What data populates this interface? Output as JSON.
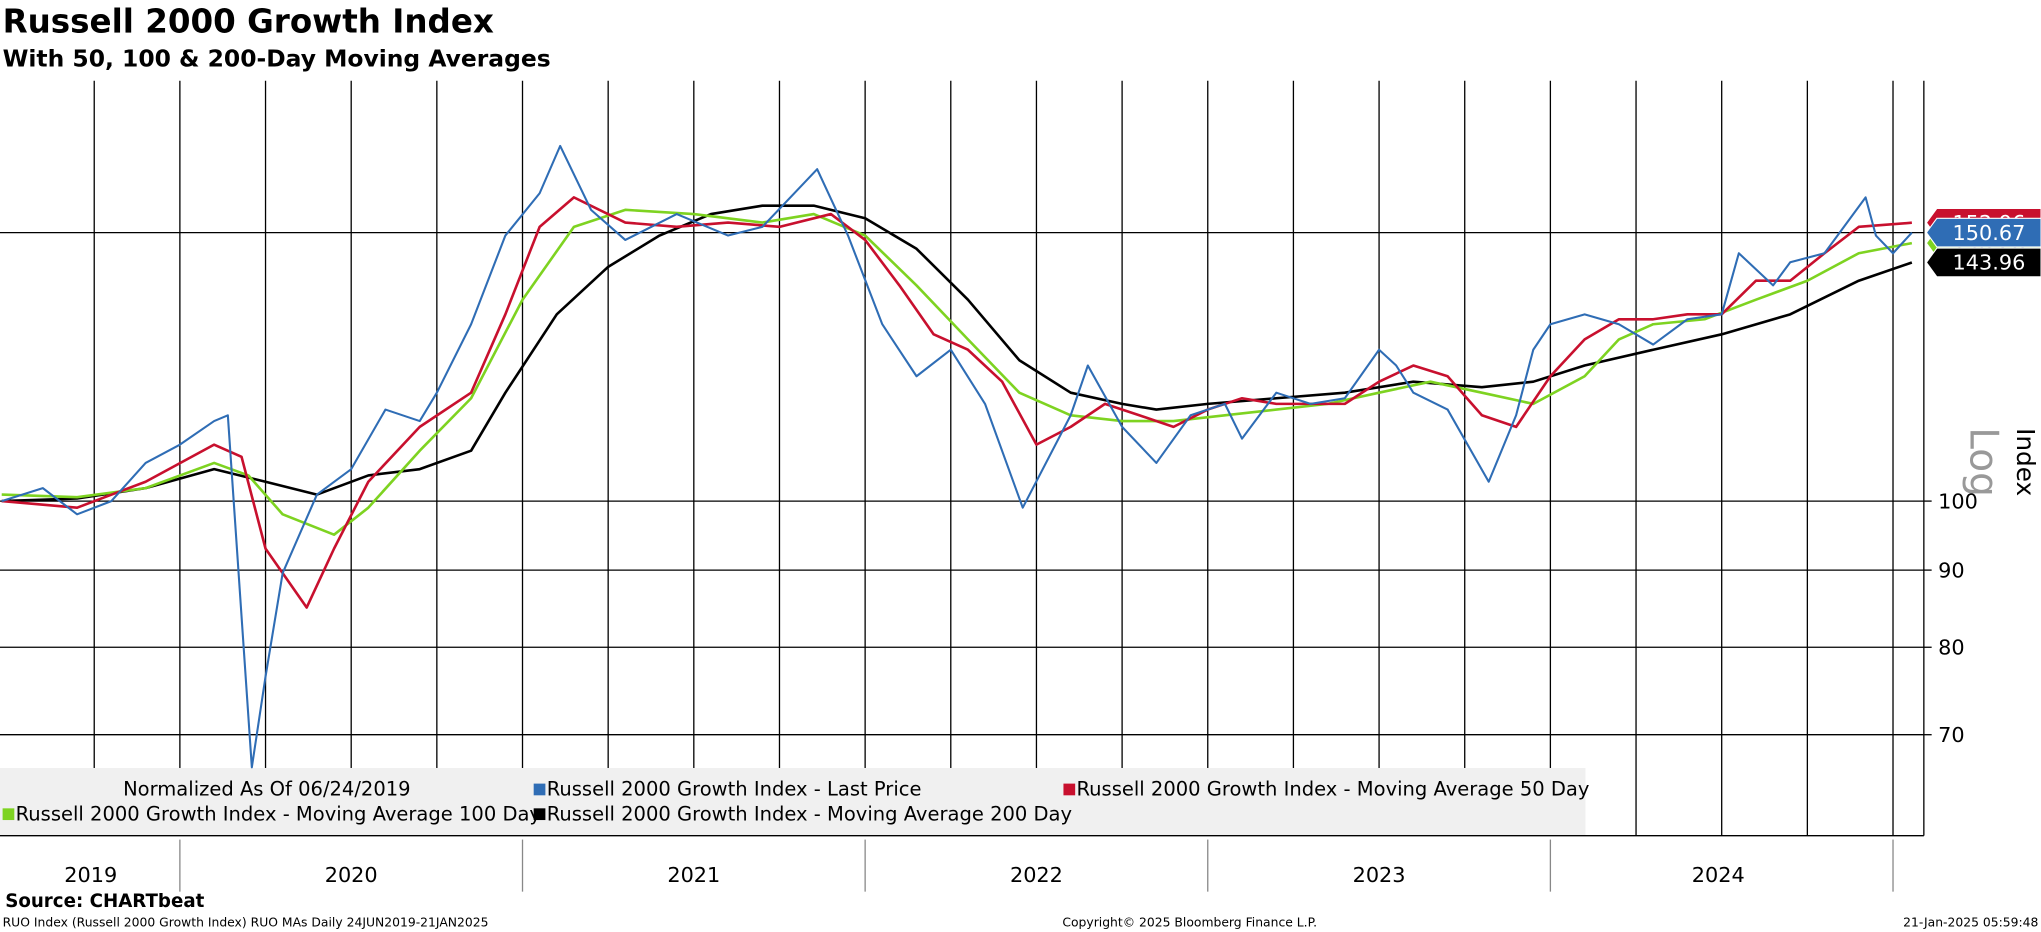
{
  "chart_data": {
    "type": "line",
    "title": "Russell 2000 Growth Index",
    "subtitle": "With 50, 100 & 200-Day Moving Averages",
    "y_label": "Index",
    "y_scale_label": "Log",
    "log_scale": true,
    "grid": true,
    "annotation": "Normalized As Of 06/24/2019",
    "source": "Source: CHARTbeat",
    "footer_left": "RUO Index (Russell 2000 Growth Index) RUO MAs  Daily 24JUN2019-21JAN2025",
    "footer_center": "Copyright© 2025 Bloomberg Finance L.P.",
    "footer_right": "21-Jan-2025 05:59:48",
    "xlim": [
      2019.475,
      2025.09
    ],
    "xticks": [
      {
        "value": 2019.74,
        "label": "2019"
      },
      {
        "value": 2020.5,
        "label": "2020"
      },
      {
        "value": 2021.5,
        "label": "2021"
      },
      {
        "value": 2022.5,
        "label": "2022"
      },
      {
        "value": 2023.5,
        "label": "2023"
      },
      {
        "value": 2024.49,
        "label": "2024"
      }
    ],
    "xgrid": [
      2019.75,
      2020,
      2020.25,
      2020.5,
      2020.75,
      2021,
      2021.25,
      2021.5,
      2021.75,
      2022,
      2022.25,
      2022.5,
      2022.75,
      2023,
      2023.25,
      2023.5,
      2023.75,
      2024,
      2024.25,
      2024.5,
      2024.75,
      2025
    ],
    "ylim": [
      60,
      190
    ],
    "yticks": [
      70,
      80,
      90,
      100
    ],
    "series": [
      {
        "name": "Russell 2000 Growth Index - Last Price",
        "color": "#2f6db5",
        "x": [
          2019.48,
          2019.6,
          2019.7,
          2019.8,
          2019.9,
          2020.0,
          2020.1,
          2020.14,
          2020.21,
          2020.25,
          2020.3,
          2020.4,
          2020.5,
          2020.6,
          2020.7,
          2020.75,
          2020.85,
          2020.95,
          2021.05,
          2021.11,
          2021.2,
          2021.3,
          2021.45,
          2021.6,
          2021.7,
          2021.86,
          2021.95,
          2022.05,
          2022.15,
          2022.25,
          2022.35,
          2022.46,
          2022.6,
          2022.65,
          2022.75,
          2022.85,
          2022.95,
          2023.05,
          2023.1,
          2023.2,
          2023.3,
          2023.4,
          2023.5,
          2023.55,
          2023.6,
          2023.7,
          2023.82,
          2023.9,
          2023.95,
          2024.0,
          2024.1,
          2024.2,
          2024.3,
          2024.4,
          2024.5,
          2024.55,
          2024.65,
          2024.7,
          2024.8,
          2024.92,
          2024.95,
          2025.0,
          2025.055
        ],
        "values": [
          100,
          102,
          98,
          100,
          106,
          109,
          113,
          114,
          66.6,
          76.5,
          89.6,
          101,
          105,
          115,
          113,
          118,
          131,
          150,
          160,
          172,
          156,
          149,
          155,
          150,
          152,
          166,
          150,
          131,
          121,
          126,
          116,
          99,
          114,
          123,
          112,
          106,
          114,
          116,
          110,
          118,
          116,
          117,
          126,
          123,
          118,
          115,
          103,
          114,
          126,
          131,
          133,
          131,
          127,
          132,
          133,
          146,
          139,
          144,
          146,
          159,
          150,
          146,
          150.67
        ]
      },
      {
        "name": "Russell 2000 Growth Index - Moving Average 50 Day",
        "color": "#c8102e",
        "x": [
          2019.48,
          2019.7,
          2019.9,
          2020.1,
          2020.18,
          2020.25,
          2020.37,
          2020.45,
          2020.55,
          2020.7,
          2020.85,
          2020.95,
          2021.05,
          2021.15,
          2021.3,
          2021.45,
          2021.6,
          2021.75,
          2021.9,
          2022.0,
          2022.1,
          2022.2,
          2022.3,
          2022.4,
          2022.5,
          2022.6,
          2022.7,
          2022.8,
          2022.9,
          2023.0,
          2023.1,
          2023.2,
          2023.3,
          2023.4,
          2023.5,
          2023.6,
          2023.7,
          2023.8,
          2023.9,
          2024.0,
          2024.1,
          2024.2,
          2024.3,
          2024.4,
          2024.5,
          2024.6,
          2024.7,
          2024.8,
          2024.9,
          2025.055
        ],
        "values": [
          100,
          99,
          103,
          109,
          107,
          93,
          85,
          93,
          103,
          112,
          118,
          133,
          152,
          159,
          153,
          152,
          153,
          152,
          155,
          149,
          139,
          129,
          126,
          120,
          109,
          112,
          116,
          114,
          112,
          115,
          117,
          116,
          116,
          116,
          120,
          123,
          121,
          114,
          112,
          121,
          128,
          132,
          132,
          133,
          133,
          140,
          140,
          146,
          152,
          152.96
        ]
      },
      {
        "name": "Russell 2000 Growth Index - Moving Average 100 Day",
        "color": "#7ed321",
        "x": [
          2019.48,
          2019.7,
          2019.9,
          2020.1,
          2020.2,
          2020.3,
          2020.45,
          2020.55,
          2020.7,
          2020.85,
          2021.0,
          2021.15,
          2021.3,
          2021.5,
          2021.7,
          2021.85,
          2022.0,
          2022.15,
          2022.3,
          2022.45,
          2022.6,
          2022.75,
          2022.9,
          2023.05,
          2023.2,
          2023.35,
          2023.5,
          2023.65,
          2023.8,
          2023.95,
          2024.1,
          2024.2,
          2024.3,
          2024.45,
          2024.6,
          2024.75,
          2024.9,
          2025.055
        ],
        "values": [
          101,
          100.6,
          102,
          106,
          104,
          98,
          95,
          99,
          108,
          117,
          136,
          152,
          156,
          155,
          153,
          155,
          150,
          139,
          128,
          118,
          114,
          113,
          113,
          114,
          115,
          116,
          118,
          120,
          118,
          116,
          121,
          128,
          131,
          132,
          136,
          140,
          146,
          148.28
        ]
      },
      {
        "name": "Russell 2000 Growth Index - Moving Average 200 Day",
        "color": "#000000",
        "x": [
          2019.48,
          2019.7,
          2019.9,
          2020.1,
          2020.25,
          2020.4,
          2020.55,
          2020.7,
          2020.85,
          2020.95,
          2021.1,
          2021.25,
          2021.4,
          2021.55,
          2021.7,
          2021.85,
          2022.0,
          2022.15,
          2022.3,
          2022.45,
          2022.6,
          2022.75,
          2022.85,
          2023.0,
          2023.2,
          2023.4,
          2023.6,
          2023.8,
          2023.95,
          2024.1,
          2024.3,
          2024.5,
          2024.7,
          2024.9,
          2025.055
        ],
        "values": [
          100,
          100.4,
          102,
          105,
          103,
          101,
          104,
          105,
          108,
          118,
          133,
          143,
          150,
          155,
          157,
          157,
          154,
          147,
          136,
          124,
          118,
          116,
          115,
          116,
          117,
          118,
          120,
          119,
          120,
          123,
          126,
          129,
          133,
          140,
          143.96
        ]
      }
    ]
  }
}
